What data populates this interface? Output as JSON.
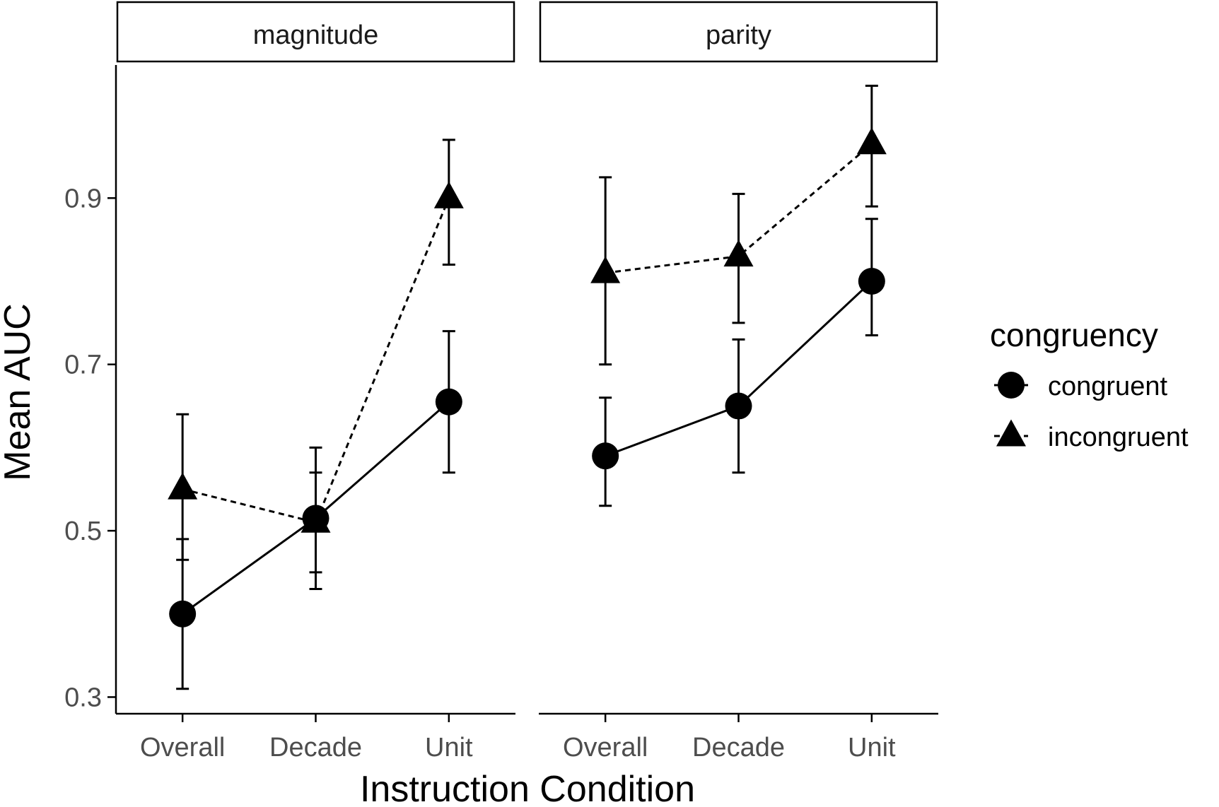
{
  "chart_data": {
    "type": "line",
    "xlabel": "Instruction Condition",
    "ylabel": "Mean AUC",
    "categories": [
      "Overall",
      "Decade",
      "Unit"
    ],
    "ylim": [
      0.28,
      1.06
    ],
    "yticks": [
      0.3,
      0.5,
      0.7,
      0.9
    ],
    "ytick_labels": [
      "0.3",
      "0.5",
      "0.7",
      "0.9"
    ],
    "grid": false,
    "legend": {
      "title": "congruency",
      "position": "right",
      "entries": [
        "congruent",
        "incongruent"
      ]
    },
    "series_styles": {
      "congruent": {
        "marker": "circle",
        "line": "solid"
      },
      "incongruent": {
        "marker": "triangle",
        "line": "dashed"
      }
    },
    "facets": [
      {
        "label": "magnitude",
        "series": [
          {
            "name": "congruent",
            "values": [
              0.4,
              0.515,
              0.655
            ],
            "error_low": [
              0.31,
              0.43,
              0.57
            ],
            "error_high": [
              0.49,
              0.6,
              0.74
            ]
          },
          {
            "name": "incongruent",
            "values": [
              0.55,
              0.51,
              0.9
            ],
            "error_low": [
              0.465,
              0.45,
              0.82
            ],
            "error_high": [
              0.64,
              0.57,
              0.97
            ]
          }
        ]
      },
      {
        "label": "parity",
        "series": [
          {
            "name": "congruent",
            "values": [
              0.59,
              0.65,
              0.8
            ],
            "error_low": [
              0.53,
              0.57,
              0.735
            ],
            "error_high": [
              0.66,
              0.73,
              0.875
            ]
          },
          {
            "name": "incongruent",
            "values": [
              0.81,
              0.83,
              0.965
            ],
            "error_low": [
              0.7,
              0.75,
              0.89
            ],
            "error_high": [
              0.925,
              0.905,
              1.035
            ]
          }
        ]
      }
    ]
  }
}
